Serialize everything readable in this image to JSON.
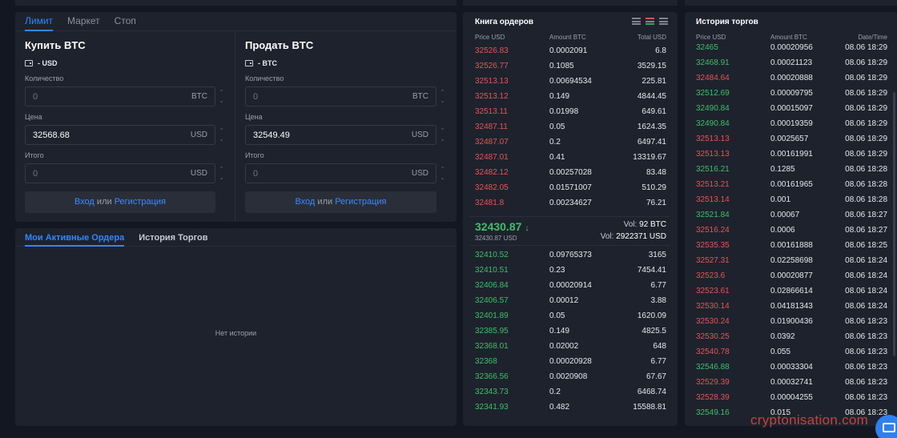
{
  "form": {
    "tabs": [
      "Лимит",
      "Маркет",
      "Стоп"
    ],
    "buy": {
      "title": "Купить BTC",
      "balance": "- USD",
      "qty_label": "Количество",
      "qty_value": "0",
      "qty_unit": "BTC",
      "price_label": "Цена",
      "price_value": "32568.68",
      "price_unit": "USD",
      "total_label": "Итого",
      "total_value": "0",
      "total_unit": "USD"
    },
    "sell": {
      "title": "Продать BTC",
      "balance": "- BTC",
      "qty_label": "Количество",
      "qty_value": "0",
      "qty_unit": "BTC",
      "price_label": "Цена",
      "price_value": "32549.49",
      "price_unit": "USD",
      "total_label": "Итого",
      "total_value": "0",
      "total_unit": "USD"
    },
    "login": "Вход",
    "or": "или",
    "register": "Регистрация"
  },
  "orders": {
    "tabs": [
      "Мои Активные Ордера",
      "История Торгов"
    ],
    "empty": "Нет истории"
  },
  "book": {
    "title": "Книга ордеров",
    "headers": [
      "Price USD",
      "Amount BTC",
      "Total USD"
    ],
    "asks": [
      [
        "32526.83",
        "0.0002091",
        "6.8"
      ],
      [
        "32526.77",
        "0.1085",
        "3529.15"
      ],
      [
        "32513.13",
        "0.00694534",
        "225.81"
      ],
      [
        "32513.12",
        "0.149",
        "4844.45"
      ],
      [
        "32513.11",
        "0.01998",
        "649.61"
      ],
      [
        "32487.11",
        "0.05",
        "1624.35"
      ],
      [
        "32487.07",
        "0.2",
        "6497.41"
      ],
      [
        "32487.01",
        "0.41",
        "13319.67"
      ],
      [
        "32482.12",
        "0.00257028",
        "83.48"
      ],
      [
        "32482.05",
        "0.01571007",
        "510.29"
      ],
      [
        "32481.8",
        "0.00234627",
        "76.21"
      ]
    ],
    "last_price": "32430.87",
    "last_arrow": "↓",
    "last_sub": "32430.87 USD",
    "vol_btc_label": "Vol:",
    "vol_btc": "92 BTC",
    "vol_usd_label": "Vol:",
    "vol_usd": "2922371 USD",
    "bids": [
      [
        "32410.52",
        "0.09765373",
        "3165"
      ],
      [
        "32410.51",
        "0.23",
        "7454.41"
      ],
      [
        "32406.84",
        "0.00020914",
        "6.77"
      ],
      [
        "32406.57",
        "0.00012",
        "3.88"
      ],
      [
        "32401.89",
        "0.05",
        "1620.09"
      ],
      [
        "32385.95",
        "0.149",
        "4825.5"
      ],
      [
        "32368.01",
        "0.02002",
        "648"
      ],
      [
        "32368",
        "0.00020928",
        "6.77"
      ],
      [
        "32366.56",
        "0.0020908",
        "67.67"
      ],
      [
        "32343.73",
        "0.2",
        "6468.74"
      ],
      [
        "32341.93",
        "0.482",
        "15588.81"
      ]
    ],
    "colors": {
      "ask": "#e05757",
      "bid": "#3fbf6a"
    }
  },
  "history": {
    "title": "История торгов",
    "headers": [
      "Price USD",
      "Amount BTC",
      "Date/Time"
    ],
    "rows": [
      [
        "32465",
        "0.00020956",
        "08.06 18:29",
        "g"
      ],
      [
        "32468.91",
        "0.00021123",
        "08.06 18:29",
        "g"
      ],
      [
        "32484.64",
        "0.00020888",
        "08.06 18:29",
        "r"
      ],
      [
        "32512.69",
        "0.00009795",
        "08.06 18:29",
        "g"
      ],
      [
        "32490.84",
        "0.00015097",
        "08.06 18:29",
        "g"
      ],
      [
        "32490.84",
        "0.00019359",
        "08.06 18:29",
        "g"
      ],
      [
        "32513.13",
        "0.0025657",
        "08.06 18:29",
        "r"
      ],
      [
        "32513.13",
        "0.00161991",
        "08.06 18:29",
        "r"
      ],
      [
        "32516.21",
        "0.1285",
        "08.06 18:28",
        "g"
      ],
      [
        "32513.21",
        "0.00161965",
        "08.06 18:28",
        "r"
      ],
      [
        "32513.14",
        "0.001",
        "08.06 18:28",
        "r"
      ],
      [
        "32521.84",
        "0.00067",
        "08.06 18:27",
        "g"
      ],
      [
        "32516.24",
        "0.0006",
        "08.06 18:27",
        "r"
      ],
      [
        "32535.35",
        "0.00161888",
        "08.06 18:25",
        "r"
      ],
      [
        "32527.31",
        "0.02258698",
        "08.06 18:24",
        "r"
      ],
      [
        "32523.6",
        "0.00020877",
        "08.06 18:24",
        "r"
      ],
      [
        "32523.61",
        "0.02866614",
        "08.06 18:24",
        "r"
      ],
      [
        "32530.14",
        "0.04181343",
        "08.06 18:24",
        "r"
      ],
      [
        "32530.24",
        "0.01900436",
        "08.06 18:23",
        "r"
      ],
      [
        "32530.25",
        "0.0392",
        "08.06 18:23",
        "r"
      ],
      [
        "32540.78",
        "0.055",
        "08.06 18:23",
        "r"
      ],
      [
        "32546.88",
        "0.00033304",
        "08.06 18:23",
        "g"
      ],
      [
        "32529.39",
        "0.00032741",
        "08.06 18:23",
        "r"
      ],
      [
        "32528.39",
        "0.00004255",
        "08.06 18:23",
        "r"
      ],
      [
        "32549.16",
        "0.015",
        "08.06 18:23",
        "g"
      ]
    ]
  },
  "watermark": "cryptonisation.com"
}
